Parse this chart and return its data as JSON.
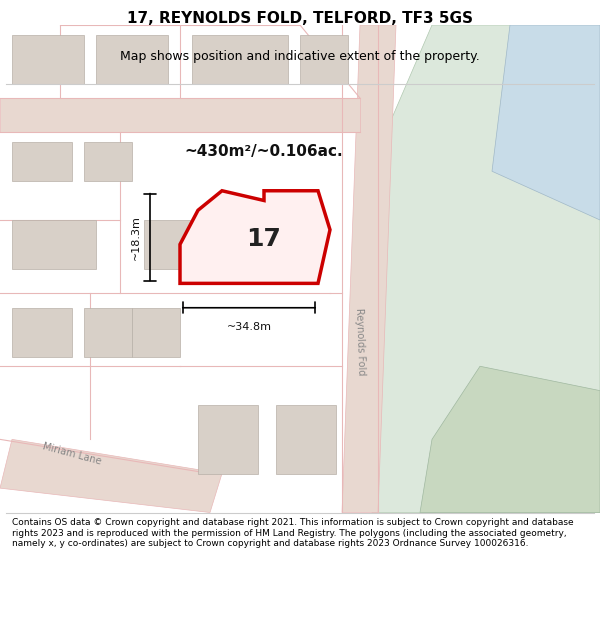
{
  "title": "17, REYNOLDS FOLD, TELFORD, TF3 5GS",
  "subtitle": "Map shows position and indicative extent of the property.",
  "area_label": "~430m²/~0.106ac.",
  "number_label": "17",
  "width_label": "~34.8m",
  "height_label": "~18.3m",
  "footer": "Contains OS data © Crown copyright and database right 2021. This information is subject to Crown copyright and database rights 2023 and is reproduced with the permission of HM Land Registry. The polygons (including the associated geometry, namely x, y co-ordinates) are subject to Crown copyright and database rights 2023 Ordnance Survey 100026316.",
  "bg_color": "#f5f0eb",
  "map_bg": "#f0ece6",
  "road_color": "#e8b8b8",
  "building_color": "#d8d0c8",
  "green_area_color": "#dce8dc",
  "blue_area_color": "#c8dce8",
  "highlight_color": "#cc0000",
  "dark_green": "#c8d8c0",
  "annotation_color": "#111111"
}
